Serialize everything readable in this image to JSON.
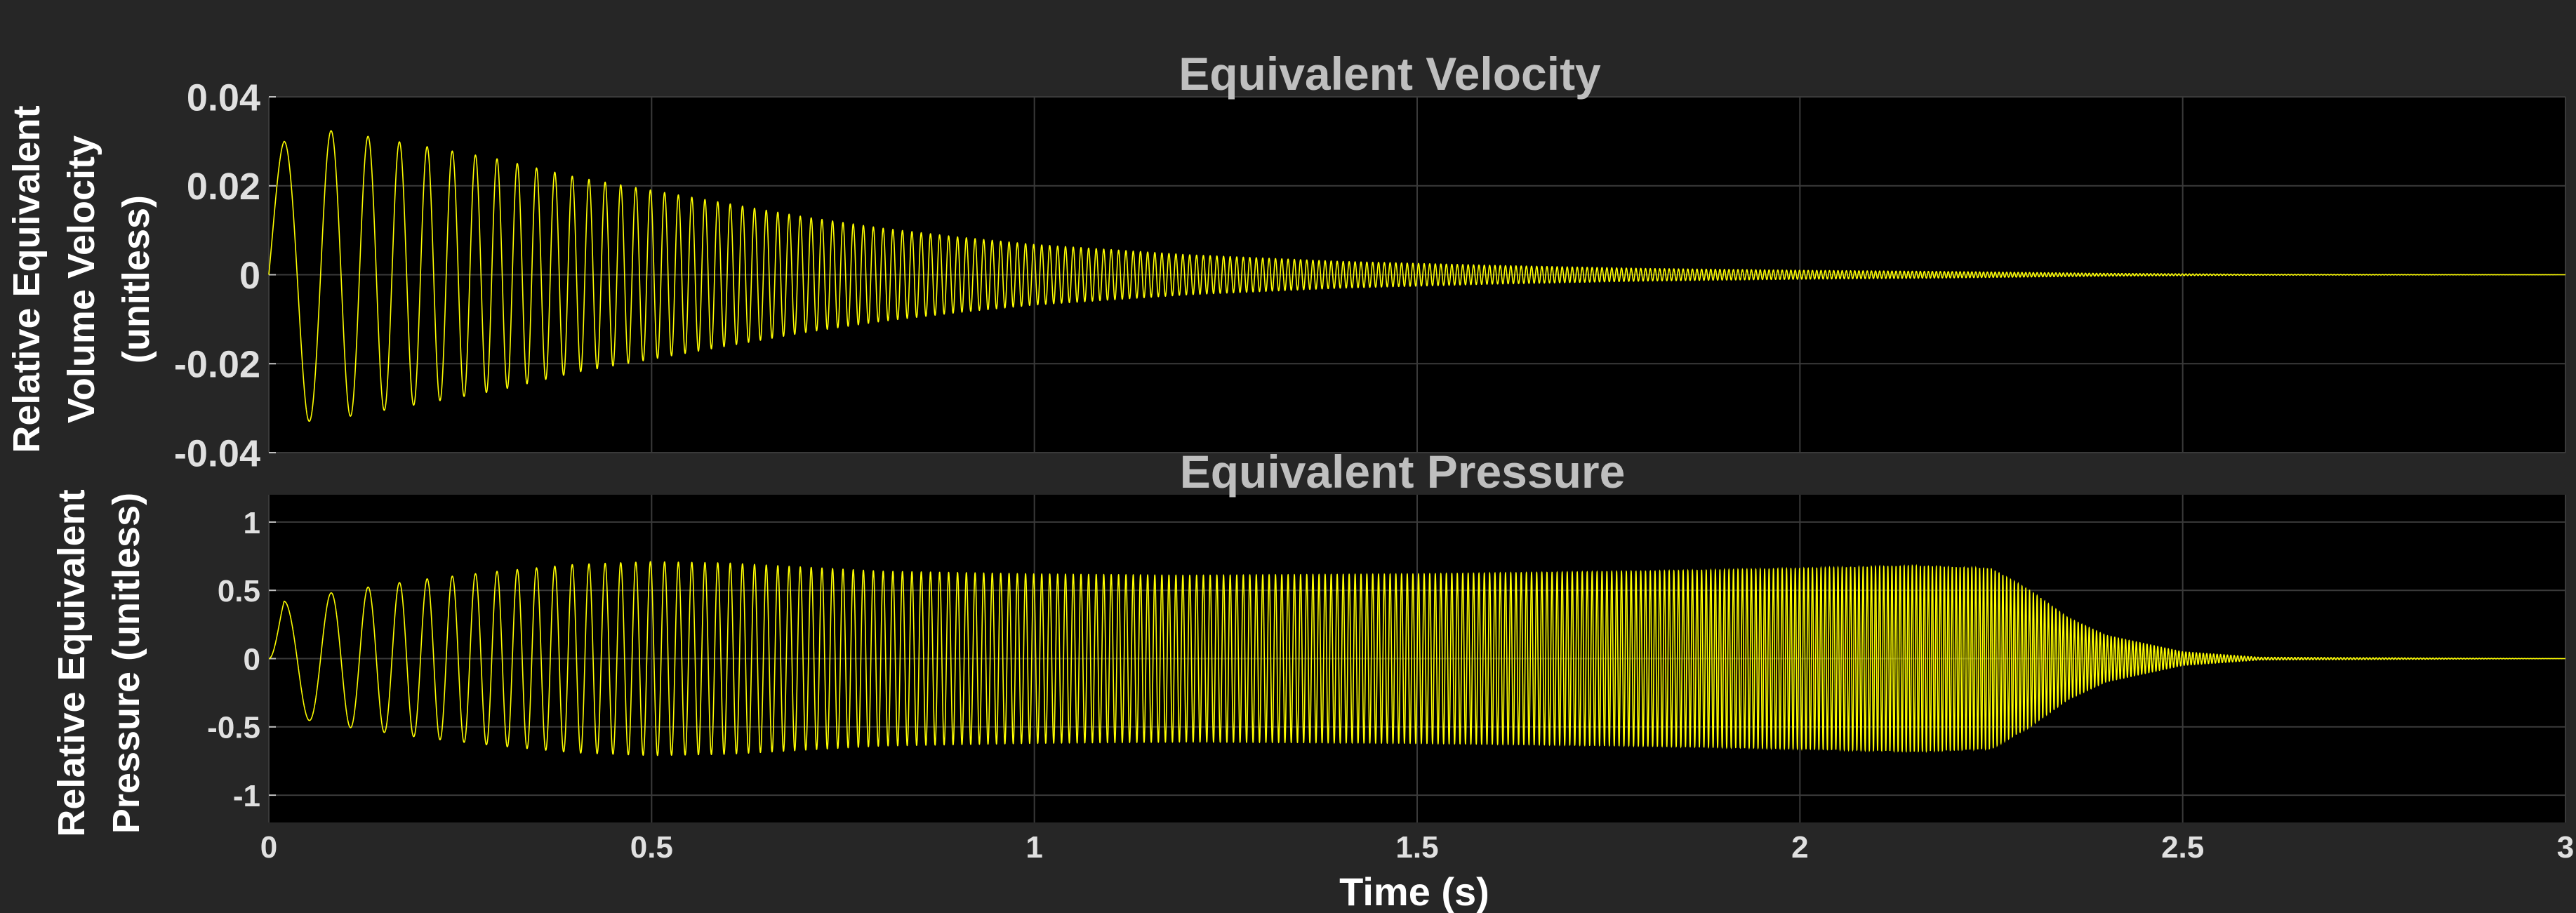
{
  "figure": {
    "background": "#262626",
    "axes_background": "#000000",
    "grid_color": "#3a3a3a",
    "trace_color": "#ffff00"
  },
  "chart_data": [
    {
      "type": "line",
      "title": "Equivalent Velocity",
      "xlabel": "",
      "ylabel_lines": [
        "Relative Equivalent",
        "Volume Velocity",
        "(unitless)"
      ],
      "xlim": [
        0,
        3
      ],
      "ylim": [
        -0.04,
        0.04
      ],
      "xticks": [
        0,
        0.5,
        1,
        1.5,
        2,
        2.5,
        3
      ],
      "xtick_labels": [],
      "yticks": [
        0.04,
        0.02,
        0,
        -0.02,
        -0.04
      ],
      "ytick_labels": [
        "0.04",
        "0.02",
        "0",
        "-0.02",
        "-0.04"
      ],
      "grid": true,
      "series": [
        {
          "signal": "chirp",
          "color": "#ffff00",
          "frequency_hz": {
            "start": 12,
            "end": 260
          },
          "envelope": {
            "t": [
              0,
              0.02,
              0.05,
              0.1,
              0.2,
              0.3,
              0.4,
              0.5,
              0.6,
              0.7,
              0.8,
              0.9,
              1.0,
              1.2,
              1.4,
              1.6,
              1.8,
              2.0,
              2.2,
              2.4,
              2.6,
              3.0
            ],
            "amplitude": [
              0.024,
              0.03,
              0.033,
              0.032,
              0.029,
              0.026,
              0.022,
              0.019,
              0.016,
              0.013,
              0.0105,
              0.0085,
              0.0068,
              0.0045,
              0.003,
              0.0021,
              0.0014,
              0.001,
              0.0007,
              0.0003,
              0.0001,
              0
            ]
          }
        }
      ]
    },
    {
      "type": "line",
      "title": "Equivalent Pressure",
      "xlabel": "Time (s)",
      "ylabel_lines": [
        "Relative Equivalent",
        "Pressure (unitless)"
      ],
      "xlim": [
        0,
        3
      ],
      "ylim": [
        -1.2,
        1.2
      ],
      "xticks": [
        0,
        0.5,
        1,
        1.5,
        2,
        2.5,
        3
      ],
      "xtick_labels": [
        "0",
        "0.5",
        "1",
        "1.5",
        "2",
        "2.5",
        "3"
      ],
      "yticks": [
        1,
        0.5,
        0,
        -0.5,
        -1
      ],
      "ytick_labels": [
        "1",
        "0.5",
        "0",
        "-0.5",
        "-1"
      ],
      "grid": true,
      "series": [
        {
          "signal": "chirp",
          "color": "#ffff00",
          "frequency_hz": {
            "start": 12,
            "end": 260
          },
          "envelope": {
            "t": [
              0,
              0.02,
              0.1,
              0.2,
              0.3,
              0.4,
              0.5,
              0.6,
              0.7,
              0.8,
              1.0,
              1.2,
              1.5,
              1.8,
              2.0,
              2.15,
              2.25,
              2.3,
              2.35,
              2.4,
              2.5,
              2.6,
              3.0
            ],
            "amplitude": [
              0.0,
              0.42,
              0.5,
              0.58,
              0.64,
              0.69,
              0.71,
              0.7,
              0.67,
              0.64,
              0.62,
              0.61,
              0.62,
              0.64,
              0.66,
              0.68,
              0.66,
              0.5,
              0.3,
              0.17,
              0.05,
              0.01,
              0
            ]
          }
        }
      ]
    }
  ]
}
